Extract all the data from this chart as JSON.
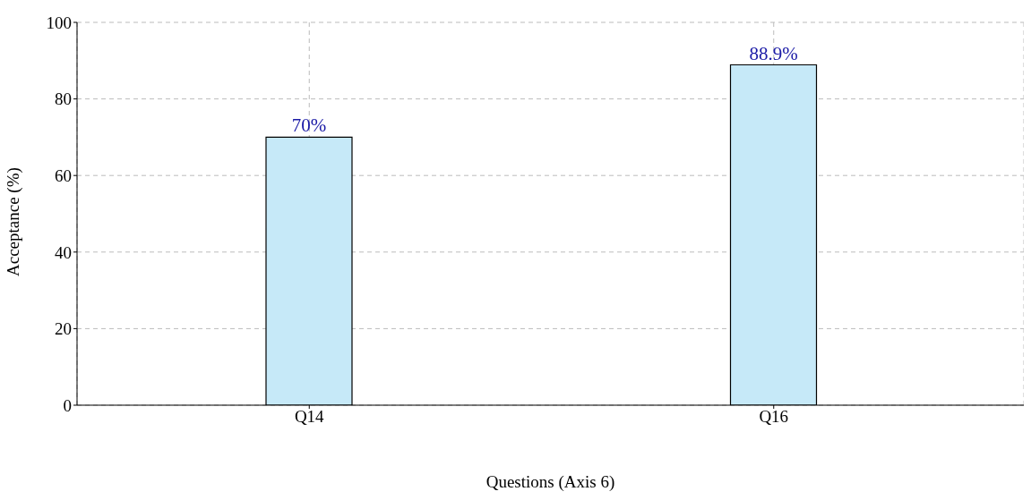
{
  "chart_data": {
    "type": "bar",
    "xlabel": "Questions (Axis 6)",
    "ylabel": "Acceptance (%)",
    "categories": [
      "Q14",
      "Q16"
    ],
    "values": [
      70,
      88.9
    ],
    "color": "#c6e9f8",
    "value_labels": [
      "70%",
      "88.9%"
    ],
    "ylim": [
      0,
      100
    ],
    "yticks": [
      0,
      20,
      40,
      60,
      80,
      100
    ],
    "grid": true
  }
}
